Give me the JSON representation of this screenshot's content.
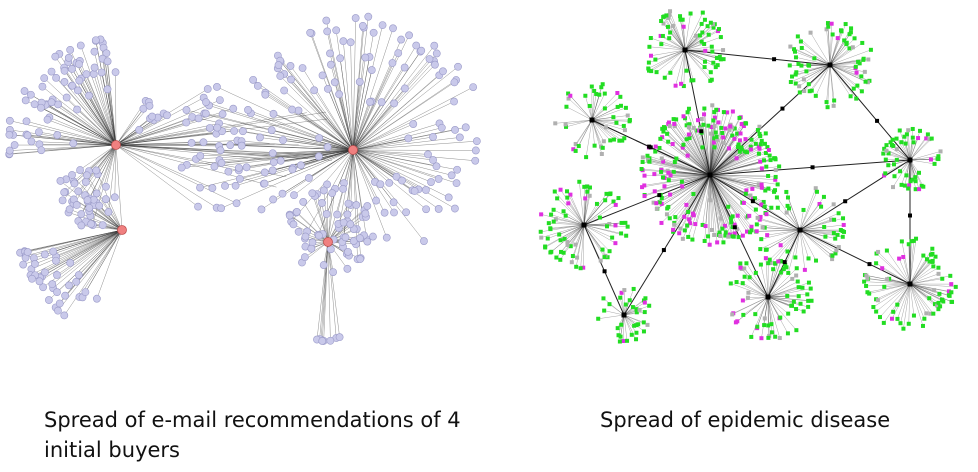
{
  "left_figure": {
    "caption": "Spread of e-mail recommendations of 4 initial buyers",
    "node_color": "#c9c9ea",
    "hub_color": "#f08080",
    "edge_color": "#333333",
    "initial_buyers": 4
  },
  "right_figure": {
    "caption": "Spread of epidemic disease",
    "colors": {
      "green": "#22dd22",
      "magenta": "#e030e0",
      "gray": "#b0b0b0",
      "hub": "#000000",
      "edge": "#222222"
    }
  }
}
